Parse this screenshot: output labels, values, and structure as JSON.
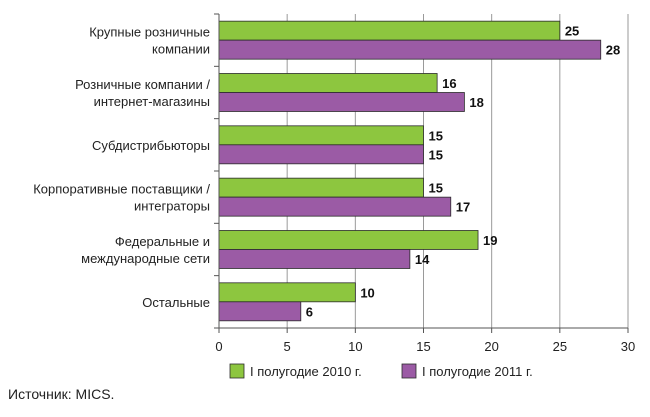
{
  "chart_data": {
    "type": "bar",
    "orientation": "horizontal",
    "categories": [
      [
        "Крупные розничные",
        "компании"
      ],
      [
        "Розничные компании /",
        "интернет-магазины"
      ],
      [
        "Субдистрибьюторы"
      ],
      [
        "Корпоративные поставщики /",
        "интеграторы"
      ],
      [
        "Федеральные и",
        "международные сети"
      ],
      [
        "Остальные"
      ]
    ],
    "series": [
      {
        "name": "I полугодие 2010 г.",
        "color": "#8dc63f",
        "values": [
          25,
          16,
          15,
          15,
          19,
          10
        ]
      },
      {
        "name": "I полугодие 2011 г.",
        "color": "#9b5ba5",
        "values": [
          28,
          18,
          15,
          17,
          14,
          6
        ]
      }
    ],
    "xlim": [
      0,
      30
    ],
    "xticks": [
      "0",
      "5",
      "10",
      "15",
      "20",
      "25",
      "30"
    ],
    "gridlines": true,
    "legend_position": "bottom",
    "title": "",
    "xlabel": "",
    "ylabel": ""
  },
  "source": "Источник: MICS."
}
